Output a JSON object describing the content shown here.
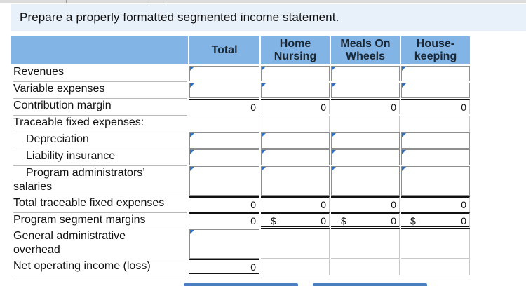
{
  "instruction": "Prepare a properly formatted segmented income statement.",
  "columns": [
    {
      "line1": "Total",
      "line2": ""
    },
    {
      "line1": "Home",
      "line2": "Nursing"
    },
    {
      "line1": "Meals On",
      "line2": "Wheels"
    },
    {
      "line1": "House-",
      "line2": "keeping"
    }
  ],
  "rows": {
    "revenues": "Revenues",
    "variable_expenses": "Variable expenses",
    "contribution_margin": "Contribution margin",
    "traceable_fixed": "Traceable fixed expenses:",
    "depreciation": "Depreciation",
    "liability_insurance": "Liability insurance",
    "program_admin_1": "Program administrators’",
    "program_admin_2": "salaries",
    "total_traceable": "Total traceable fixed expenses",
    "program_segment_margins": "Program segment margins",
    "general_admin_1": "General administrative",
    "general_admin_2": "overhead",
    "net_operating_income": "Net operating income (loss)"
  },
  "values": {
    "contribution_margin": [
      "0",
      "0",
      "0",
      "0"
    ],
    "total_traceable": [
      "0",
      "0",
      "0",
      "0"
    ],
    "program_segment_margins": [
      "0",
      "0",
      "0",
      "0"
    ],
    "net_operating_income": [
      "0"
    ]
  },
  "currency_symbol": "$",
  "colors": {
    "header_blue": "#82b4e6",
    "instruction_bg": "#e8f0fa",
    "input_corner": "#2e72c7"
  }
}
